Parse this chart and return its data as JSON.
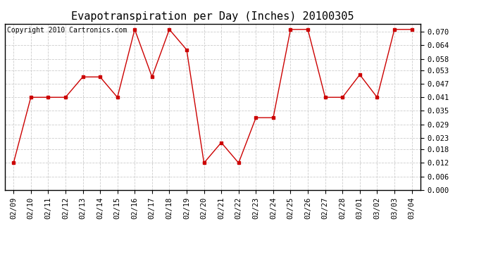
{
  "title": "Evapotranspiration per Day (Inches) 20100305",
  "copyright_text": "Copyright 2010 Cartronics.com",
  "dates": [
    "02/09",
    "02/10",
    "02/11",
    "02/12",
    "02/13",
    "02/14",
    "02/15",
    "02/16",
    "02/17",
    "02/18",
    "02/19",
    "02/20",
    "02/21",
    "02/22",
    "02/23",
    "02/24",
    "02/25",
    "02/26",
    "02/27",
    "02/28",
    "03/01",
    "03/02",
    "03/03",
    "03/04"
  ],
  "values": [
    0.012,
    0.041,
    0.041,
    0.041,
    0.05,
    0.05,
    0.041,
    0.071,
    0.05,
    0.071,
    0.062,
    0.012,
    0.021,
    0.012,
    0.032,
    0.032,
    0.071,
    0.071,
    0.041,
    0.041,
    0.051,
    0.041,
    0.071,
    0.071
  ],
  "line_color": "#cc0000",
  "marker": "s",
  "marker_size": 3,
  "ylim": [
    0.0,
    0.0735
  ],
  "yticks": [
    0.0,
    0.006,
    0.012,
    0.018,
    0.023,
    0.029,
    0.035,
    0.041,
    0.047,
    0.053,
    0.058,
    0.064,
    0.07
  ],
  "background_color": "#ffffff",
  "grid_color": "#cccccc",
  "title_fontsize": 11,
  "copyright_fontsize": 7,
  "tick_fontsize": 7.5
}
